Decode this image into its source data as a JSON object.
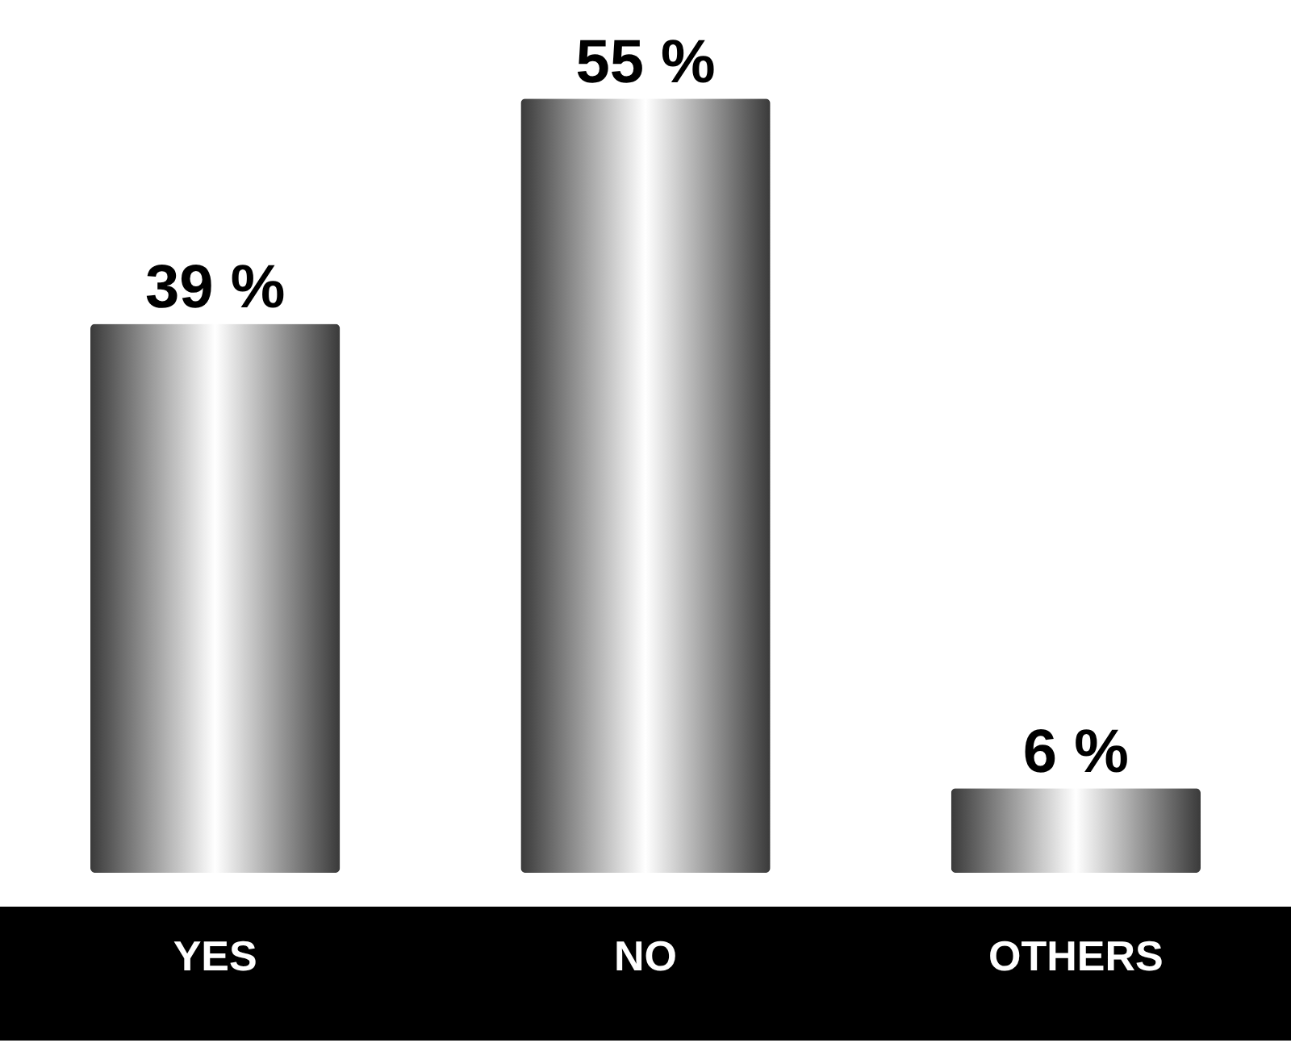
{
  "chart_data": {
    "type": "bar",
    "categories": [
      "YES",
      "NO",
      "OTHERS"
    ],
    "values": [
      39,
      55,
      6
    ],
    "value_labels": [
      "39 %",
      "55 %",
      "6 %"
    ],
    "color": "#3a3a3a",
    "ylim": [
      0,
      62
    ],
    "grid": false
  }
}
